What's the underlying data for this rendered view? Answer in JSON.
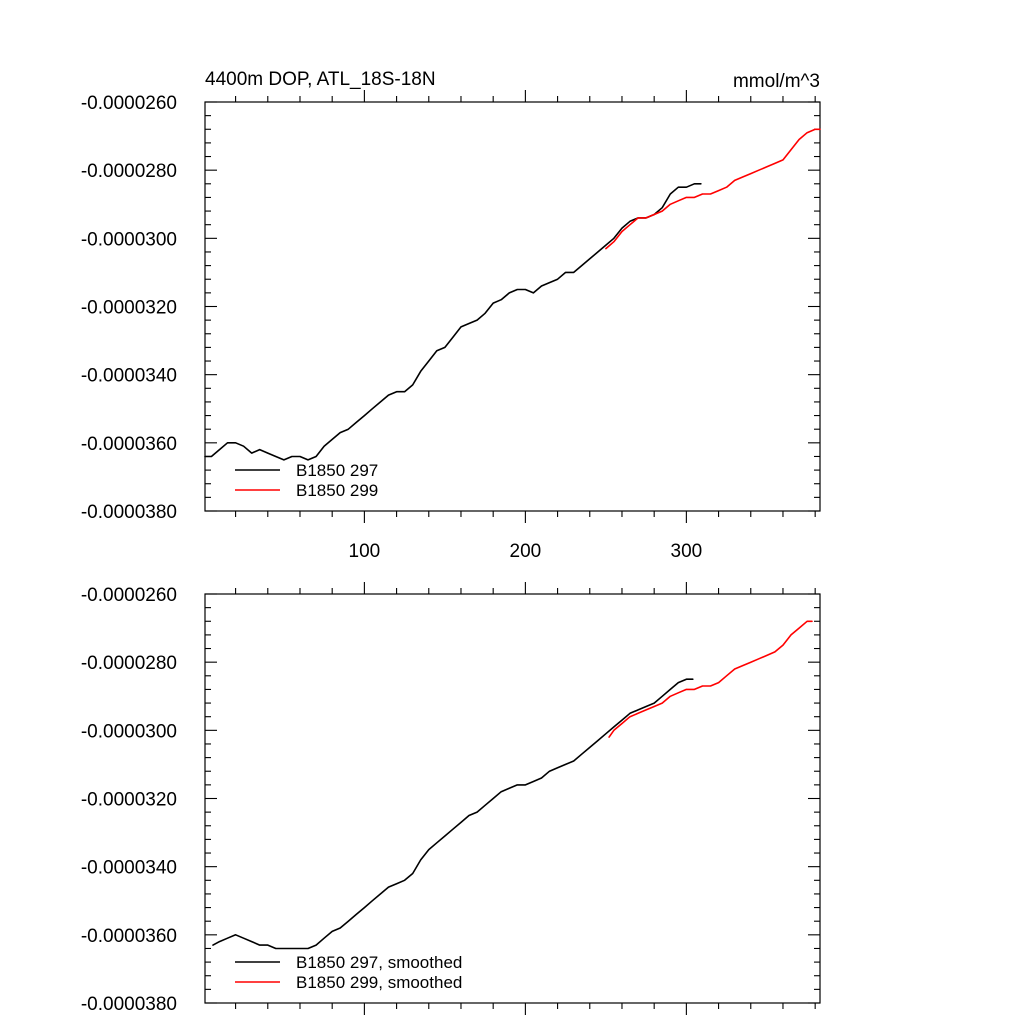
{
  "chart_data": [
    {
      "type": "line",
      "title": "4400m DOP, ATL_18S-18N",
      "units": "mmol/m^3",
      "xlim": [
        1,
        383
      ],
      "ylim": [
        -3.8e-05,
        -2.6e-05
      ],
      "x_tick_labels": [
        "100",
        "200",
        "300"
      ],
      "x_ticks": [
        100,
        200,
        300
      ],
      "y_tick_labels": [
        "-0.0000260",
        "-0.0000280",
        "-0.0000300",
        "-0.0000320",
        "-0.0000340",
        "-0.0000360",
        "-0.0000380"
      ],
      "y_ticks": [
        -2.6e-05,
        -2.8e-05,
        -3e-05,
        -3.2e-05,
        -3.4e-05,
        -3.6e-05,
        -3.8e-05
      ],
      "legend_position": "bottom-left",
      "series": [
        {
          "name": "B1850 297",
          "color": "#000000",
          "x": [
            1,
            5,
            10,
            15,
            20,
            25,
            30,
            35,
            40,
            45,
            50,
            55,
            60,
            65,
            70,
            75,
            80,
            85,
            90,
            95,
            100,
            105,
            110,
            115,
            120,
            125,
            130,
            135,
            140,
            145,
            150,
            155,
            160,
            165,
            170,
            175,
            180,
            185,
            190,
            195,
            200,
            205,
            210,
            215,
            220,
            225,
            230,
            235,
            240,
            245,
            250,
            255,
            260,
            265,
            270,
            275,
            280,
            285,
            290,
            295,
            300,
            305,
            309
          ],
          "y": [
            -3.64e-05,
            -3.64e-05,
            -3.62e-05,
            -3.6e-05,
            -3.6e-05,
            -3.61e-05,
            -3.63e-05,
            -3.62e-05,
            -3.63e-05,
            -3.64e-05,
            -3.65e-05,
            -3.64e-05,
            -3.64e-05,
            -3.65e-05,
            -3.64e-05,
            -3.61e-05,
            -3.59e-05,
            -3.57e-05,
            -3.56e-05,
            -3.54e-05,
            -3.52e-05,
            -3.5e-05,
            -3.48e-05,
            -3.46e-05,
            -3.45e-05,
            -3.45e-05,
            -3.43e-05,
            -3.39e-05,
            -3.36e-05,
            -3.33e-05,
            -3.32e-05,
            -3.29e-05,
            -3.26e-05,
            -3.25e-05,
            -3.24e-05,
            -3.22e-05,
            -3.19e-05,
            -3.18e-05,
            -3.16e-05,
            -3.15e-05,
            -3.15e-05,
            -3.16e-05,
            -3.14e-05,
            -3.13e-05,
            -3.12e-05,
            -3.1e-05,
            -3.1e-05,
            -3.08e-05,
            -3.06e-05,
            -3.04e-05,
            -3.02e-05,
            -3e-05,
            -2.97e-05,
            -2.95e-05,
            -2.94e-05,
            -2.94e-05,
            -2.93e-05,
            -2.91e-05,
            -2.87e-05,
            -2.85e-05,
            -2.85e-05,
            -2.84e-05,
            -2.84e-05
          ]
        },
        {
          "name": "B1850 299",
          "color": "#ff0000",
          "x": [
            250,
            255,
            260,
            265,
            270,
            275,
            280,
            285,
            290,
            295,
            300,
            305,
            310,
            315,
            320,
            325,
            330,
            335,
            340,
            345,
            350,
            355,
            360,
            365,
            370,
            375,
            380,
            383
          ],
          "y": [
            -3.03e-05,
            -3.01e-05,
            -2.98e-05,
            -2.96e-05,
            -2.94e-05,
            -2.94e-05,
            -2.93e-05,
            -2.92e-05,
            -2.9e-05,
            -2.89e-05,
            -2.88e-05,
            -2.88e-05,
            -2.87e-05,
            -2.87e-05,
            -2.86e-05,
            -2.85e-05,
            -2.83e-05,
            -2.82e-05,
            -2.81e-05,
            -2.8e-05,
            -2.79e-05,
            -2.78e-05,
            -2.77e-05,
            -2.74e-05,
            -2.71e-05,
            -2.69e-05,
            -2.68e-05,
            -2.68e-05
          ]
        }
      ]
    },
    {
      "type": "line",
      "title": "",
      "xlim": [
        1,
        383
      ],
      "ylim": [
        -3.8e-05,
        -2.6e-05
      ],
      "x_ticks": [
        100,
        200,
        300
      ],
      "y_tick_labels": [
        "-0.0000260",
        "-0.0000280",
        "-0.0000300",
        "-0.0000320",
        "-0.0000340",
        "-0.0000360",
        "-0.0000380"
      ],
      "y_ticks": [
        -2.6e-05,
        -2.8e-05,
        -3e-05,
        -3.2e-05,
        -3.4e-05,
        -3.6e-05,
        -3.8e-05
      ],
      "legend_position": "bottom-left",
      "series": [
        {
          "name": "B1850 297, smoothed",
          "color": "#000000",
          "x": [
            6,
            10,
            15,
            20,
            25,
            30,
            35,
            40,
            45,
            50,
            55,
            60,
            65,
            70,
            75,
            80,
            85,
            90,
            95,
            100,
            105,
            110,
            115,
            120,
            125,
            130,
            135,
            140,
            145,
            150,
            155,
            160,
            165,
            170,
            175,
            180,
            185,
            190,
            195,
            200,
            205,
            210,
            215,
            220,
            225,
            230,
            235,
            240,
            245,
            250,
            255,
            260,
            265,
            270,
            275,
            280,
            285,
            290,
            295,
            300,
            304
          ],
          "y": [
            -3.63e-05,
            -3.62e-05,
            -3.61e-05,
            -3.6e-05,
            -3.61e-05,
            -3.62e-05,
            -3.63e-05,
            -3.63e-05,
            -3.64e-05,
            -3.64e-05,
            -3.64e-05,
            -3.64e-05,
            -3.64e-05,
            -3.63e-05,
            -3.61e-05,
            -3.59e-05,
            -3.58e-05,
            -3.56e-05,
            -3.54e-05,
            -3.52e-05,
            -3.5e-05,
            -3.48e-05,
            -3.46e-05,
            -3.45e-05,
            -3.44e-05,
            -3.42e-05,
            -3.38e-05,
            -3.35e-05,
            -3.33e-05,
            -3.31e-05,
            -3.29e-05,
            -3.27e-05,
            -3.25e-05,
            -3.24e-05,
            -3.22e-05,
            -3.2e-05,
            -3.18e-05,
            -3.17e-05,
            -3.16e-05,
            -3.16e-05,
            -3.15e-05,
            -3.14e-05,
            -3.12e-05,
            -3.11e-05,
            -3.1e-05,
            -3.09e-05,
            -3.07e-05,
            -3.05e-05,
            -3.03e-05,
            -3.01e-05,
            -2.99e-05,
            -2.97e-05,
            -2.95e-05,
            -2.94e-05,
            -2.93e-05,
            -2.92e-05,
            -2.9e-05,
            -2.88e-05,
            -2.86e-05,
            -2.85e-05,
            -2.85e-05
          ]
        },
        {
          "name": "B1850 299, smoothed",
          "color": "#ff0000",
          "x": [
            252,
            255,
            260,
            265,
            270,
            275,
            280,
            285,
            290,
            295,
            300,
            305,
            310,
            315,
            320,
            325,
            330,
            335,
            340,
            345,
            350,
            355,
            360,
            365,
            370,
            375,
            378
          ],
          "y": [
            -3.02e-05,
            -3e-05,
            -2.98e-05,
            -2.96e-05,
            -2.95e-05,
            -2.94e-05,
            -2.93e-05,
            -2.92e-05,
            -2.9e-05,
            -2.89e-05,
            -2.88e-05,
            -2.88e-05,
            -2.87e-05,
            -2.87e-05,
            -2.86e-05,
            -2.84e-05,
            -2.82e-05,
            -2.81e-05,
            -2.8e-05,
            -2.79e-05,
            -2.78e-05,
            -2.77e-05,
            -2.75e-05,
            -2.72e-05,
            -2.7e-05,
            -2.68e-05,
            -2.68e-05
          ]
        }
      ]
    }
  ]
}
